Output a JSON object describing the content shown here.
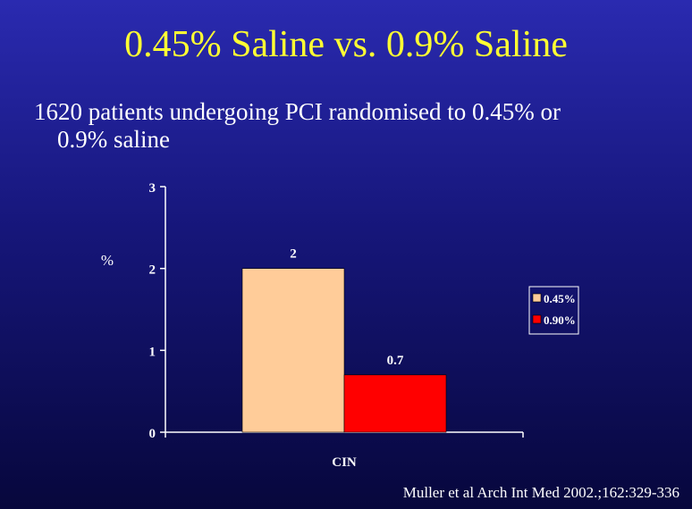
{
  "slide": {
    "title": "0.45% Saline vs. 0.9% Saline",
    "bullet_line1": "1620 patients undergoing PCI randomised to 0.45% or",
    "bullet_line2": "0.9% saline",
    "citation": "Muller et al Arch Int Med 2002.;162:329-336"
  },
  "chart_data": {
    "type": "bar",
    "categories": [
      "CIN"
    ],
    "series": [
      {
        "name": "0.45%",
        "values": [
          2
        ],
        "color": "#ffcc99"
      },
      {
        "name": "0.90%",
        "values": [
          0.7
        ],
        "color": "#ff0000"
      }
    ],
    "ylabel": "%",
    "xlabel": "",
    "ylim": [
      0,
      3
    ],
    "yticks": [
      "0",
      "1",
      "2",
      "3"
    ],
    "data_labels": [
      "2",
      "0.7"
    ],
    "legend_position": "right",
    "grid": false
  }
}
